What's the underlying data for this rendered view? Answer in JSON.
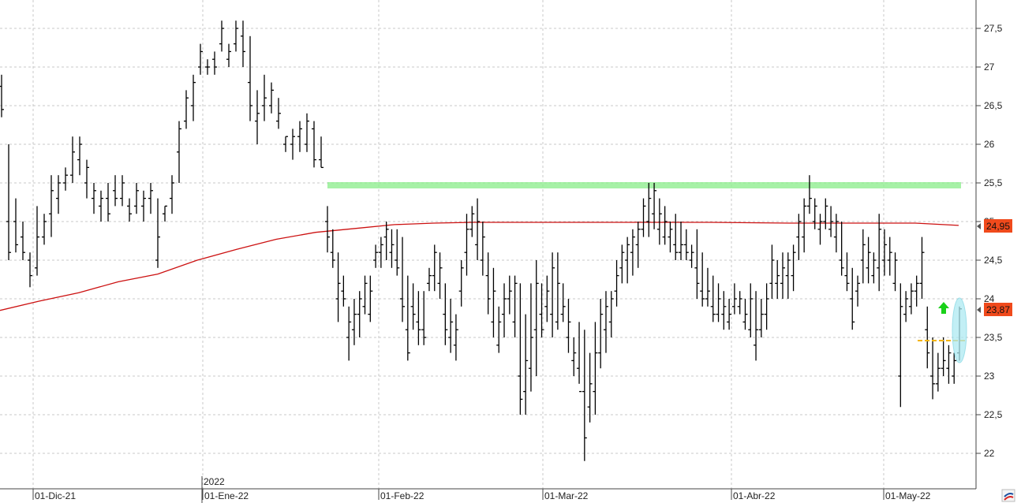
{
  "chart_data": {
    "type": "ohlc",
    "grid": true,
    "y_axis": {
      "position": "right",
      "ylim": [
        21.6,
        27.9
      ],
      "ticks": [
        "22",
        "22,5",
        "23",
        "23,5",
        "24",
        "24,5",
        "25",
        "25,5",
        "26",
        "26,5",
        "27",
        "27,5"
      ]
    },
    "x_axis": {
      "labels": [
        "01-Dic-21",
        "01-Ene-22",
        "01-Feb-22",
        "01-Mar-22",
        "01-Abr-22",
        "01-May-22"
      ],
      "year_marker": "2022"
    },
    "price_tags": {
      "moving_average": "24,95",
      "last": "23,87"
    },
    "colors": {
      "moving_average": "#cc1111",
      "tag_bg": "#f04a1c",
      "resistance": "#90ee90",
      "support": "#f5b400",
      "arrow": "#19d119",
      "highlight": "#aeeaf2",
      "bars": "#000000"
    },
    "levels": {
      "resistance": 25.48,
      "support": 23.47
    },
    "bars_dec_jan": [
      [
        26.9,
        26.35,
        26.75,
        26.45
      ],
      [
        26.0,
        24.5,
        25.0,
        24.6
      ],
      [
        25.3,
        24.6,
        25.0,
        24.7
      ],
      [
        25.0,
        24.5,
        24.8,
        24.6
      ],
      [
        24.6,
        24.15,
        24.5,
        24.3
      ],
      [
        25.2,
        24.3,
        24.4,
        24.8
      ],
      [
        25.1,
        24.7,
        24.8,
        25.0
      ],
      [
        25.6,
        24.8,
        25.1,
        25.4
      ],
      [
        25.6,
        25.1,
        25.3,
        25.5
      ],
      [
        25.7,
        25.4,
        25.5,
        25.6
      ],
      [
        26.1,
        25.5,
        25.6,
        25.9
      ],
      [
        26.1,
        25.6,
        25.8,
        26.0
      ],
      [
        25.8,
        25.3,
        25.5,
        25.7
      ],
      [
        25.5,
        25.1,
        25.3,
        25.4
      ],
      [
        25.4,
        25.0,
        25.2,
        25.3
      ],
      [
        25.5,
        25.0,
        25.3,
        25.1
      ],
      [
        25.6,
        25.2,
        25.4,
        25.3
      ],
      [
        25.6,
        25.2,
        25.3,
        25.5
      ],
      [
        25.3,
        25.0,
        25.2,
        25.1
      ],
      [
        25.5,
        25.1,
        25.2,
        25.4
      ],
      [
        25.4,
        25.0,
        25.2,
        25.3
      ],
      [
        25.5,
        25.1,
        25.3,
        25.4
      ],
      [
        25.3,
        24.4,
        24.5,
        24.8
      ],
      [
        25.2,
        25.0,
        25.1,
        25.2
      ],
      [
        25.6,
        25.1,
        25.3,
        25.5
      ],
      [
        26.3,
        25.5,
        25.9,
        26.2
      ],
      [
        26.7,
        26.2,
        26.3,
        26.6
      ],
      [
        26.9,
        26.3,
        26.5,
        26.8
      ],
      [
        27.3,
        26.9,
        27.0,
        27.2
      ],
      [
        27.1,
        26.9,
        27.0,
        27.0
      ],
      [
        27.2,
        26.9,
        27.1,
        27.0
      ],
      [
        27.6,
        27.2,
        27.3,
        27.5
      ],
      [
        27.3,
        27.0,
        27.1,
        27.2
      ],
      [
        27.6,
        27.2,
        27.3,
        27.5
      ],
      [
        27.6,
        27.0,
        27.4,
        27.2
      ],
      [
        27.4,
        26.3,
        26.8,
        26.5
      ],
      [
        26.7,
        26.0,
        26.3,
        26.4
      ],
      [
        26.9,
        26.3,
        26.5,
        26.6
      ],
      [
        26.8,
        26.4,
        26.5,
        26.7
      ],
      [
        26.6,
        26.2,
        26.3,
        26.4
      ],
      [
        26.1,
        25.9,
        26.0,
        26.1
      ],
      [
        26.2,
        25.8,
        26.0,
        26.1
      ],
      [
        26.3,
        25.9,
        26.1,
        26.2
      ],
      [
        26.4,
        25.9,
        26.0,
        26.3
      ],
      [
        26.3,
        25.7,
        26.2,
        25.8
      ],
      [
        26.1,
        25.7,
        25.8,
        25.7
      ]
    ],
    "bars_jan_may": [
      [
        25.2,
        24.6,
        25.0,
        24.8
      ],
      [
        24.9,
        24.4,
        24.6,
        24.5
      ],
      [
        24.6,
        23.7,
        24.0,
        24.2
      ],
      [
        24.3,
        23.9,
        24.1,
        24.0
      ],
      [
        23.9,
        23.2,
        23.5,
        23.7
      ],
      [
        24.0,
        23.4,
        23.6,
        23.8
      ],
      [
        24.1,
        23.5,
        23.8,
        24.0
      ],
      [
        24.3,
        23.8,
        23.9,
        24.2
      ],
      [
        24.3,
        23.7,
        23.8,
        24.1
      ],
      [
        24.7,
        24.4,
        24.5,
        24.6
      ],
      [
        24.8,
        24.4,
        24.6,
        24.7
      ],
      [
        25.0,
        24.5,
        24.8,
        24.9
      ],
      [
        24.9,
        24.4,
        24.6,
        24.7
      ],
      [
        24.9,
        24.3,
        24.5,
        24.4
      ],
      [
        24.8,
        23.7,
        24.0,
        23.9
      ],
      [
        24.3,
        23.2,
        23.6,
        23.3
      ],
      [
        24.2,
        23.6,
        23.9,
        23.8
      ],
      [
        24.1,
        23.4,
        23.7,
        23.6
      ],
      [
        24.1,
        23.4,
        23.6,
        23.5
      ],
      [
        24.4,
        24.1,
        24.2,
        24.3
      ],
      [
        24.7,
        24.1,
        24.3,
        24.6
      ],
      [
        24.6,
        24.0,
        24.2,
        24.4
      ],
      [
        24.2,
        23.4,
        23.8,
        23.6
      ],
      [
        24.0,
        23.3,
        23.5,
        23.7
      ],
      [
        23.8,
        23.2,
        23.4,
        23.6
      ],
      [
        24.5,
        23.9,
        24.1,
        24.4
      ],
      [
        25.1,
        24.3,
        24.6,
        24.9
      ],
      [
        25.2,
        24.8,
        24.9,
        25.1
      ],
      [
        25.3,
        24.5,
        24.7,
        25.0
      ],
      [
        25.0,
        24.3,
        24.5,
        24.8
      ],
      [
        24.6,
        23.8,
        24.3,
        24.0
      ],
      [
        24.4,
        23.5,
        23.7,
        24.1
      ],
      [
        23.9,
        23.3,
        23.4,
        23.7
      ],
      [
        24.2,
        23.5,
        23.8,
        24.0
      ],
      [
        24.3,
        23.8,
        24.0,
        24.1
      ],
      [
        24.3,
        23.5,
        23.7,
        24.2
      ],
      [
        24.2,
        22.5,
        23.0,
        22.7
      ],
      [
        23.8,
        22.5,
        22.8,
        23.2
      ],
      [
        24.2,
        22.8,
        23.1,
        23.5
      ],
      [
        24.5,
        23.0,
        23.6,
        24.2
      ],
      [
        24.2,
        23.5,
        23.8,
        23.6
      ],
      [
        24.3,
        23.7,
        23.9,
        24.1
      ],
      [
        24.6,
        23.5,
        23.8,
        24.4
      ],
      [
        24.6,
        23.6,
        23.7,
        24.2
      ],
      [
        24.2,
        23.7,
        23.8,
        23.9
      ],
      [
        24.0,
        23.3,
        23.5,
        23.7
      ],
      [
        23.5,
        23.0,
        23.2,
        23.3
      ],
      [
        23.7,
        22.9,
        23.1,
        22.8
      ],
      [
        23.6,
        21.9,
        22.8,
        22.2
      ],
      [
        23.3,
        22.4,
        22.6,
        22.9
      ],
      [
        23.7,
        22.5,
        22.8,
        23.3
      ],
      [
        24.0,
        23.1,
        23.3,
        23.8
      ],
      [
        24.1,
        23.3,
        23.6,
        23.9
      ],
      [
        24.1,
        23.5,
        23.7,
        24.0
      ],
      [
        24.5,
        23.9,
        24.1,
        24.3
      ],
      [
        24.7,
        24.2,
        24.4,
        24.6
      ],
      [
        24.8,
        24.2,
        24.5,
        24.7
      ],
      [
        24.9,
        24.3,
        24.6,
        24.8
      ],
      [
        25.0,
        24.4,
        24.7,
        24.9
      ],
      [
        25.3,
        24.8,
        24.9,
        25.2
      ],
      [
        25.5,
        24.8,
        25.0,
        25.3
      ],
      [
        25.5,
        24.9,
        25.1,
        25.4
      ],
      [
        25.3,
        24.7,
        24.9,
        25.1
      ],
      [
        25.2,
        24.7,
        24.8,
        25.0
      ],
      [
        25.0,
        24.6,
        24.8,
        24.9
      ],
      [
        25.1,
        24.5,
        24.7,
        24.6
      ],
      [
        25.0,
        24.5,
        24.6,
        24.7
      ],
      [
        24.9,
        24.5,
        24.7,
        24.6
      ],
      [
        24.7,
        24.4,
        24.5,
        24.6
      ],
      [
        24.9,
        24.0,
        24.4,
        24.2
      ],
      [
        24.6,
        23.9,
        24.1,
        24.0
      ],
      [
        24.4,
        23.9,
        24.0,
        24.1
      ],
      [
        24.3,
        23.7,
        23.9,
        23.8
      ],
      [
        24.2,
        23.7,
        23.8,
        24.0
      ],
      [
        24.1,
        23.6,
        23.8,
        23.9
      ],
      [
        24.0,
        23.6,
        23.7,
        23.8
      ],
      [
        24.2,
        23.8,
        23.9,
        24.0
      ],
      [
        24.1,
        23.8,
        23.9,
        24.0
      ],
      [
        24.0,
        23.6,
        23.7,
        23.8
      ],
      [
        24.2,
        23.5,
        23.6,
        24.0
      ],
      [
        24.1,
        23.2,
        23.4,
        23.6
      ],
      [
        24.0,
        23.5,
        23.6,
        23.8
      ],
      [
        24.2,
        23.6,
        23.8,
        24.0
      ],
      [
        24.7,
        24.0,
        24.2,
        24.5
      ],
      [
        24.5,
        24.0,
        24.2,
        24.3
      ],
      [
        24.6,
        24.0,
        24.2,
        24.4
      ],
      [
        24.6,
        24.0,
        24.3,
        24.5
      ],
      [
        24.7,
        24.1,
        24.3,
        24.6
      ],
      [
        25.1,
        24.5,
        24.8,
        25.0
      ],
      [
        25.3,
        24.6,
        24.8,
        25.2
      ],
      [
        25.6,
        25.1,
        25.2,
        25.3
      ],
      [
        25.3,
        24.9,
        25.0,
        25.2
      ],
      [
        25.1,
        24.7,
        24.9,
        25.0
      ],
      [
        25.3,
        24.9,
        25.0,
        25.2
      ],
      [
        25.2,
        24.8,
        24.9,
        25.0
      ],
      [
        25.1,
        24.6,
        24.8,
        25.0
      ],
      [
        25.0,
        24.3,
        24.5,
        24.4
      ],
      [
        24.6,
        24.1,
        24.3,
        24.2
      ],
      [
        24.4,
        23.6,
        24.0,
        23.7
      ],
      [
        24.3,
        23.9,
        24.1,
        24.2
      ],
      [
        24.9,
        24.2,
        24.5,
        24.7
      ],
      [
        24.8,
        24.2,
        24.4,
        24.6
      ],
      [
        24.6,
        24.2,
        24.3,
        24.5
      ],
      [
        25.1,
        24.1,
        24.4,
        24.9
      ],
      [
        24.9,
        24.3,
        24.5,
        24.7
      ],
      [
        24.8,
        24.3,
        24.5,
        24.6
      ],
      [
        24.6,
        24.1,
        24.2,
        24.5
      ],
      [
        24.2,
        22.6,
        23.0,
        23.9
      ],
      [
        24.1,
        23.7,
        23.8,
        24.0
      ],
      [
        24.2,
        23.8,
        23.9,
        24.1
      ],
      [
        24.3,
        23.9,
        24.1,
        24.2
      ],
      [
        24.8,
        24.0,
        24.2,
        24.6
      ],
      [
        23.9,
        23.1,
        23.6,
        23.3
      ],
      [
        23.5,
        22.7,
        23.0,
        22.9
      ],
      [
        23.3,
        22.8,
        22.9,
        23.1
      ],
      [
        23.5,
        23.0,
        23.1,
        23.2
      ],
      [
        23.4,
        22.9,
        23.1,
        23.3
      ],
      [
        23.3,
        22.9,
        23.0,
        23.2
      ],
      [
        23.9,
        23.2,
        23.3,
        23.87
      ]
    ]
  }
}
